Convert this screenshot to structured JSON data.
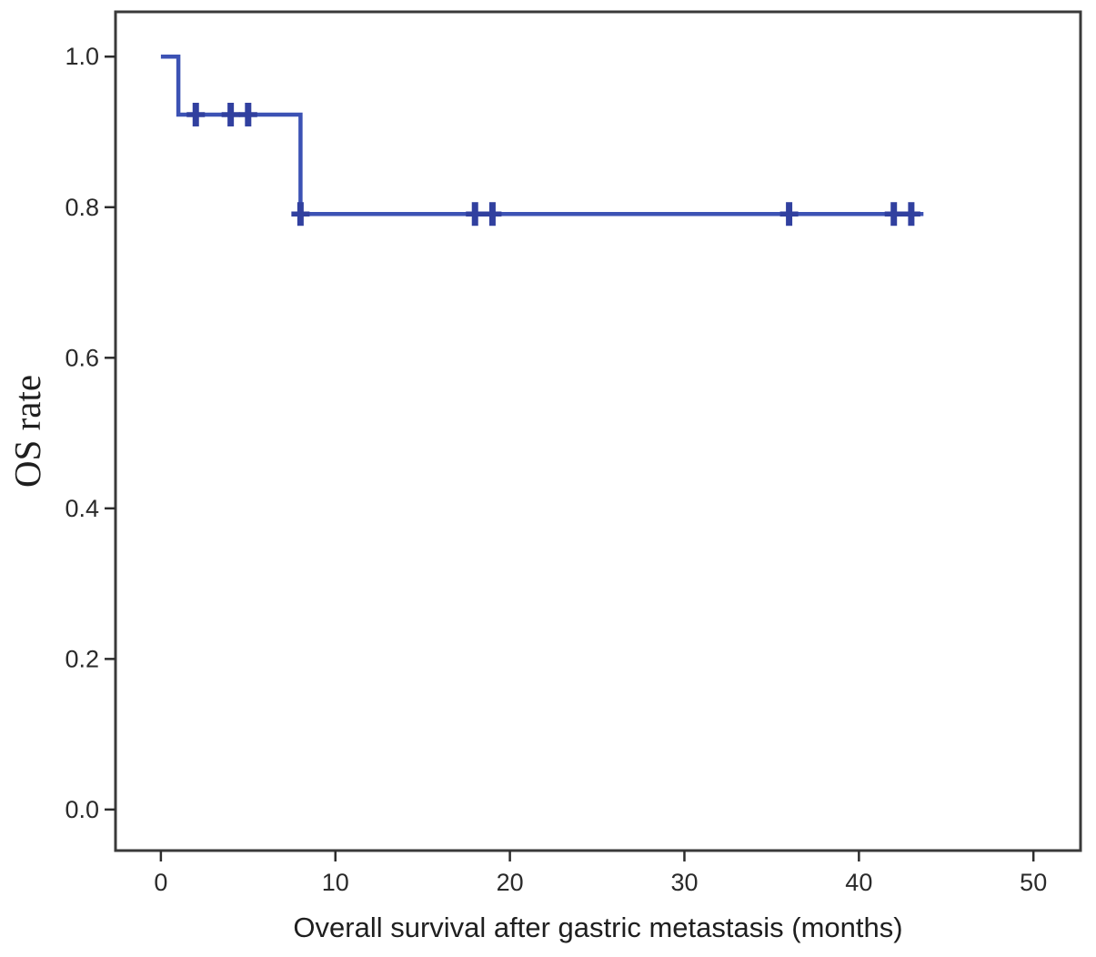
{
  "figure": {
    "background_color": "#ffffff",
    "frame_color": "#3a3a3a",
    "tick_color": "#2d2d2d",
    "tick_label_color": "#2a2a2a",
    "axis_title_color": "#1f1f1f"
  },
  "chart_data": {
    "type": "line",
    "subtype": "kaplan_meier_step",
    "title": "",
    "xlabel": "Overall survival after gastric metastasis (months)",
    "ylabel": "OS rate",
    "xlim": [
      -2.6,
      52.7
    ],
    "ylim": [
      -0.0545,
      1.0595
    ],
    "x_tick_values": [
      0,
      10,
      20,
      30,
      40,
      50
    ],
    "x_tick_labels": [
      "0",
      "10",
      "20",
      "30",
      "40",
      "50"
    ],
    "y_tick_values": [
      0.0,
      0.2,
      0.4,
      0.6,
      0.8,
      1.0
    ],
    "y_tick_labels": [
      "0.0",
      "0.2",
      "0.4",
      "0.6",
      "0.8",
      "1.0"
    ],
    "grid": false,
    "legend": false,
    "series": [
      {
        "name": "OS rate",
        "line_color": "#3c52b4",
        "censor_color": "#31409f",
        "step_points": [
          [
            0,
            1.0
          ],
          [
            1,
            1.0
          ],
          [
            1,
            0.923
          ],
          [
            8,
            0.923
          ],
          [
            8,
            0.791
          ],
          [
            43.7,
            0.791
          ]
        ],
        "censored_points": [
          [
            2,
            0.923
          ],
          [
            4,
            0.923
          ],
          [
            5,
            0.923
          ],
          [
            8,
            0.791
          ],
          [
            18,
            0.791
          ],
          [
            19,
            0.791
          ],
          [
            36,
            0.791
          ],
          [
            42,
            0.791
          ],
          [
            43,
            0.791
          ]
        ]
      }
    ]
  }
}
